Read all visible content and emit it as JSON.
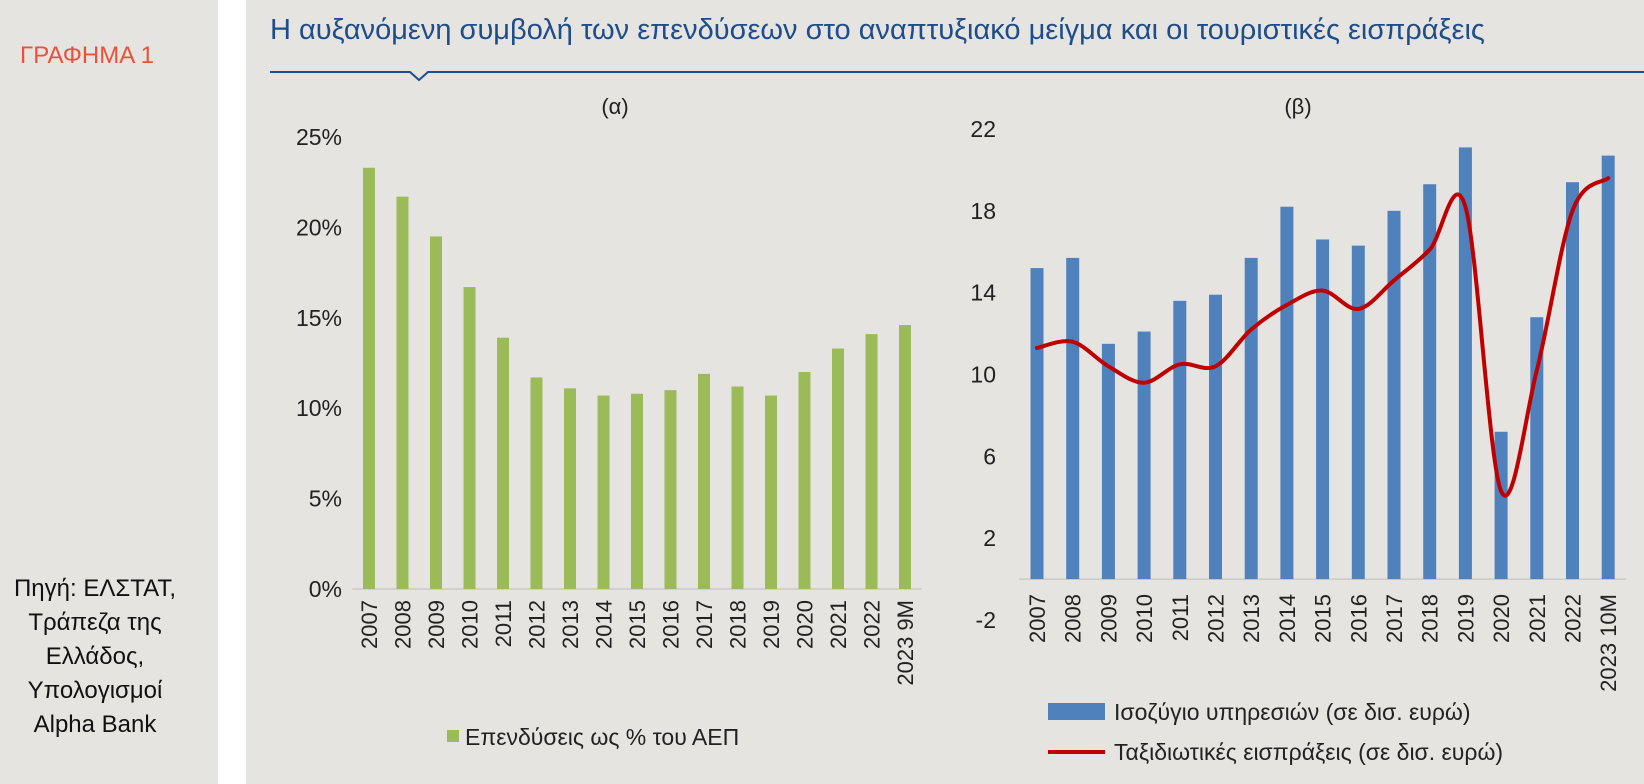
{
  "figure_label": "ΓΡΑΦΗΜΑ 1",
  "title": "Η αυξανόμενη συμβολή των επενδύσεων στο αναπτυξιακό μείγμα και οι τουριστικές εισπράξεις",
  "source_lines": [
    "Πηγή: ΕΛΣΤΑΤ,",
    "Τράπεζα της",
    "Ελλάδος,",
    "Υπολογισμοί",
    "Alpha Bank"
  ],
  "colors": {
    "accent": "#1e4d8c",
    "label_red": "#e8523c",
    "bar_green": "#9bbb59",
    "bar_blue": "#4f81bd",
    "line_red": "#c00000"
  },
  "chart_data": [
    {
      "type": "bar",
      "panel_label": "(α)",
      "categories": [
        "2007",
        "2008",
        "2009",
        "2010",
        "2011",
        "2012",
        "2013",
        "2014",
        "2015",
        "2016",
        "2017",
        "2018",
        "2019",
        "2020",
        "2021",
        "2022",
        "2023 9M"
      ],
      "series": [
        {
          "name": "Επενδύσεις ως % του ΑΕΠ",
          "values": [
            23.3,
            21.7,
            19.5,
            16.7,
            13.9,
            11.7,
            11.1,
            10.7,
            10.8,
            11.0,
            11.9,
            11.2,
            10.7,
            12.0,
            13.3,
            14.1,
            14.6
          ]
        }
      ],
      "yticks": [
        "25%",
        "20%",
        "15%",
        "10%",
        "5%",
        "0%"
      ],
      "ylim": [
        0,
        25
      ],
      "legend": "Επενδύσεις ως % του ΑΕΠ"
    },
    {
      "type": "bar+line",
      "panel_label": "(β)",
      "categories": [
        "2007",
        "2008",
        "2009",
        "2010",
        "2011",
        "2012",
        "2013",
        "2014",
        "2015",
        "2016",
        "2017",
        "2018",
        "2019",
        "2020",
        "2021",
        "2022",
        "2023 10M"
      ],
      "series": [
        {
          "name": "Ισοζύγιο υπηρεσιών (σε δισ. ευρώ)",
          "type": "bar",
          "values": [
            15.2,
            15.7,
            11.5,
            12.1,
            13.6,
            13.9,
            15.7,
            18.2,
            16.6,
            16.3,
            18.0,
            19.3,
            21.1,
            7.2,
            12.8,
            19.4,
            20.7
          ]
        },
        {
          "name": "Ταξιδιωτικές εισπράξεις (σε δισ. ευρώ)",
          "type": "line",
          "values": [
            11.3,
            11.6,
            10.4,
            9.6,
            10.5,
            10.4,
            12.2,
            13.4,
            14.1,
            13.2,
            14.6,
            16.1,
            18.2,
            4.3,
            10.2,
            18.0,
            19.6
          ]
        }
      ],
      "yticks": [
        "22",
        "18",
        "14",
        "10",
        "6",
        "2",
        "-2"
      ],
      "ylim": [
        -2,
        22
      ],
      "legend": [
        "Ισοζύγιο υπηρεσιών (σε δισ. ευρώ)",
        "Ταξιδιωτικές εισπράξεις (σε δισ. ευρώ)"
      ]
    }
  ]
}
